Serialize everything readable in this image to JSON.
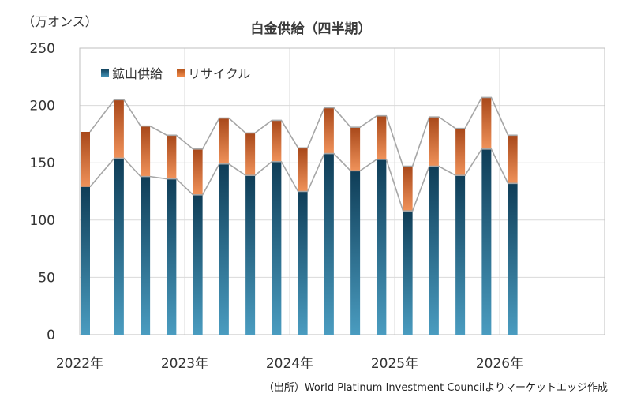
{
  "unit_label": "（万オンス）",
  "source": "（出所）World Platinum Investment Councilよりマーケットエッジ作成",
  "chart_data": {
    "type": "bar",
    "stacked": true,
    "title": "白金供給（四半期）",
    "ylim": [
      0,
      250
    ],
    "yticks": [
      0,
      50,
      100,
      150,
      200,
      250
    ],
    "grid": true,
    "legend_position": "top-left",
    "xlabels": [
      "2022年",
      "2023年",
      "2024年",
      "2025年",
      "2026年"
    ],
    "x_slots": 20,
    "categories": [
      "2022Q1",
      "2022Q2",
      "2022Q3",
      "2022Q4",
      "2023Q1",
      "2023Q2",
      "2023Q3",
      "2023Q4",
      "2024Q1",
      "2024Q2",
      "2024Q3",
      "2024Q4",
      "2025Q1",
      "2025Q2",
      "2025Q3",
      "2025Q4",
      "2026Q1"
    ],
    "series": [
      {
        "name": "鉱山供給",
        "values": [
          129,
          154,
          138,
          136,
          122,
          149,
          139,
          151,
          125,
          158,
          143,
          153,
          108,
          147,
          139,
          162,
          132
        ],
        "color_top": "#0f3d57",
        "color_bottom": "#4a9cc0"
      },
      {
        "name": "リサイクル",
        "values": [
          48,
          51,
          44,
          38,
          40,
          40,
          37,
          36,
          38,
          40,
          38,
          38,
          39,
          43,
          41,
          45,
          42
        ],
        "color_top": "#a8481a",
        "color_bottom": "#f0925a"
      }
    ]
  }
}
